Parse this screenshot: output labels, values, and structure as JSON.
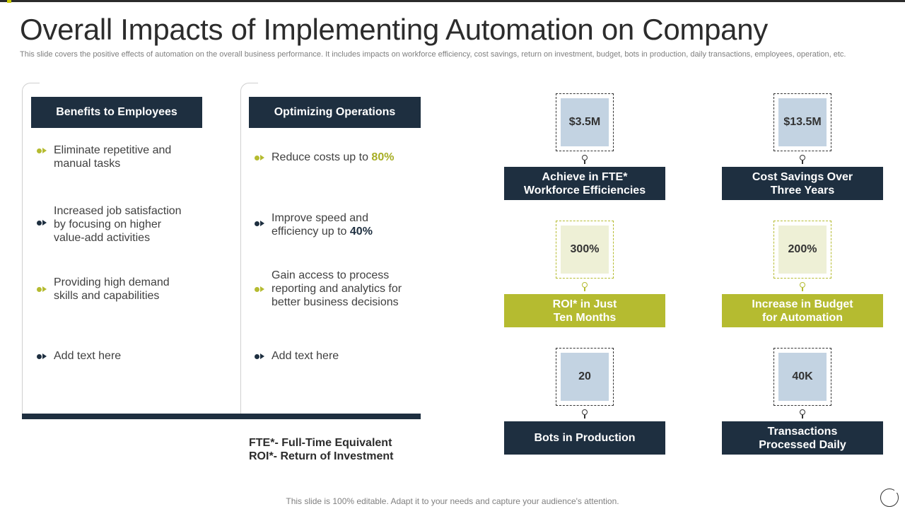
{
  "title": "Overall Impacts of Implementing Automation on Company",
  "subtitle": "This slide covers the positive effects of automation on the overall business performance. It includes impacts on workforce efficiency, cost savings, return on investment, budget, bots in production, daily transactions, employees, operation, etc.",
  "benefits": {
    "header": "Benefits to Employees",
    "items": [
      {
        "line1": "Eliminate repetitive and",
        "line2": "manual tasks"
      },
      {
        "line1": "Increased job satisfaction",
        "line2": "by focusing on higher",
        "line3": "value-add activities"
      },
      {
        "line1": "Providing high demand",
        "line2": "skills and capabilities"
      },
      {
        "line1": "Add text here"
      }
    ]
  },
  "operations": {
    "header": "Optimizing Operations",
    "items": [
      {
        "prefix": "Reduce costs up to ",
        "highlight": "80%"
      },
      {
        "line1": "Improve speed and",
        "prefix": "efficiency up to ",
        "highlight": "40%"
      },
      {
        "line1": "Gain access to process",
        "line2": "reporting and analytics for",
        "line3": "better business decisions"
      },
      {
        "line1": "Add text here"
      }
    ]
  },
  "footnotes": {
    "fte": "FTE*- Full-Time Equivalent",
    "roi": "ROI*- Return of Investment"
  },
  "metrics": [
    {
      "value": "$3.5M",
      "label1": "Achieve in FTE*",
      "label2": "Workforce Efficiencies"
    },
    {
      "value": "$13.5M",
      "label1": "Cost Savings Over",
      "label2": "Three Years"
    },
    {
      "value": "300%",
      "label1": "ROI* in Just",
      "label2": "Ten Months"
    },
    {
      "value": "200%",
      "label1": "Increase in Budget",
      "label2": "for Automation"
    },
    {
      "value": "20",
      "label1": "Bots in Production",
      "label2": ""
    },
    {
      "value": "40K",
      "label1": "Transactions",
      "label2": "Processed Daily"
    }
  ],
  "colors": {
    "navy": "#1e2f40",
    "green": "#b5bb30",
    "light_blue": "#c3d3e2",
    "cream": "#eef0d6"
  },
  "bottom_note": "This slide is 100% editable. Adapt it to your needs and capture your audience's attention."
}
